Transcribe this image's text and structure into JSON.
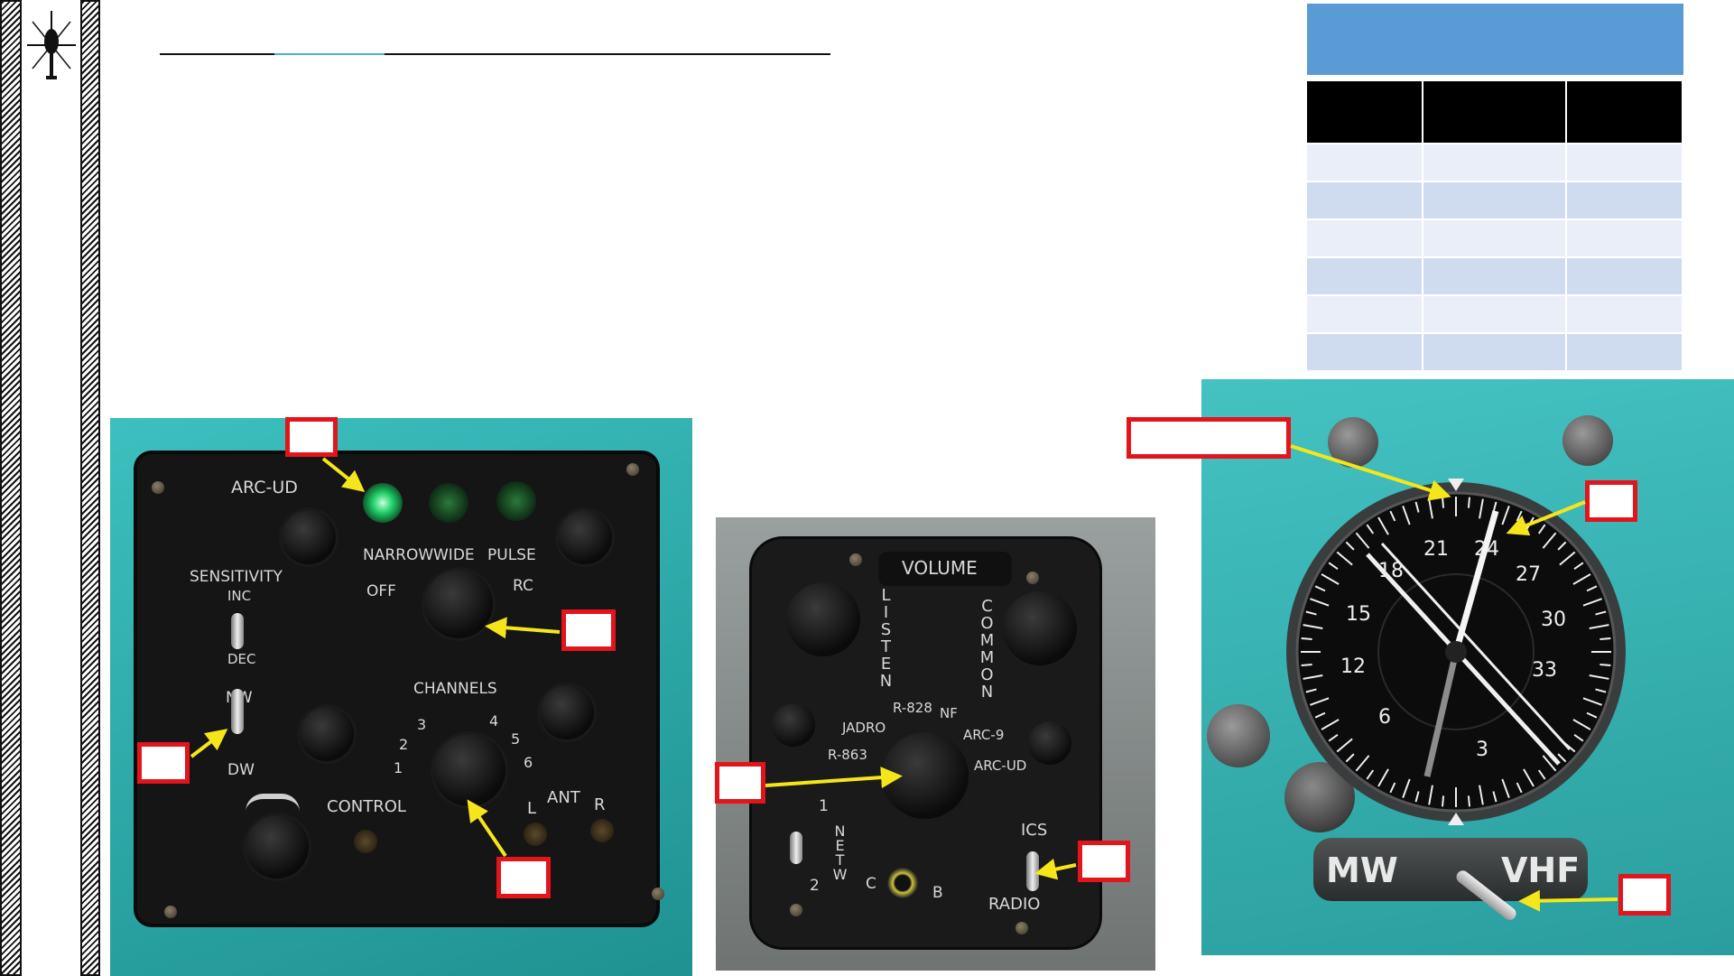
{
  "panel_arc": {
    "title": "ARC-UD",
    "sensitivity": "SENSITIVITY",
    "inc": "INC",
    "dec": "DEC",
    "nw": "NW",
    "dw": "DW",
    "narrow": "NARROW",
    "wide": "WIDE",
    "pulse": "PULSE",
    "off": "OFF",
    "rc": "RC",
    "channels": "CHANNELS",
    "ch": [
      "1",
      "2",
      "3",
      "4",
      "5",
      "6"
    ],
    "control": "CONTROL",
    "ant": "ANT",
    "l": "L",
    "r": "R"
  },
  "panel_audio": {
    "volume": "VOLUME",
    "listen": "LISTEN",
    "common": "COMMON",
    "r863": "R-863",
    "jadro": "JADRO",
    "r828": "R-828",
    "nf": "NF",
    "arc9": "ARC-9",
    "arcud": "ARC-UD",
    "one": "1",
    "two": "2",
    "netw": "NETW",
    "c": "C",
    "b": "B",
    "ics": "ICS",
    "radio": "RADIO"
  },
  "indicator": {
    "scale": [
      "21",
      "24",
      "27",
      "30",
      "33",
      "3",
      "6",
      "12",
      "15",
      "18"
    ],
    "mw": "MW",
    "vhf": "VHF"
  },
  "colors": {
    "table_header": "#5b9bd5",
    "callout_border": "#e3141b",
    "arrow": "#f5e61b",
    "panel_bg": "#2fb3b3"
  }
}
